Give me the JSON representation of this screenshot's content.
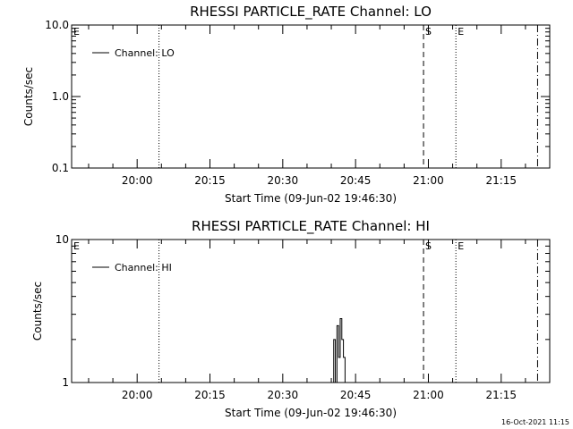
{
  "colors": {
    "background": "#ffffff",
    "foreground": "#000000"
  },
  "chart_data": [
    {
      "type": "line",
      "title": "RHESSI PARTICLE_RATE Channel: LO",
      "xlabel": "Start Time (09-Jun-02 19:46:30)",
      "ylabel": "Counts/sec",
      "y_scale": "log",
      "xlim_minutes": [
        "19:46:30",
        "21:25:00"
      ],
      "ylim": [
        0.1,
        10.0
      ],
      "x_ticks": [
        "20:00",
        "20:15",
        "20:30",
        "20:45",
        "21:00",
        "21:15"
      ],
      "y_ticks": [
        "0.1",
        "1.0",
        "10.0"
      ],
      "legend": {
        "placement": "top-left",
        "entries": [
          "Channel: LO"
        ]
      },
      "grid": false,
      "series": [
        {
          "name": "Channel: LO",
          "points": []
        }
      ],
      "markers": [
        {
          "label": "E",
          "time": "19:46:30",
          "style": "solid"
        },
        {
          "label": "",
          "time": "20:04:30",
          "style": "dotted"
        },
        {
          "label": "S",
          "time": "20:59:00",
          "style": "dashed"
        },
        {
          "label": "E",
          "time": "21:05:40",
          "style": "dotted"
        },
        {
          "label": "",
          "time": "21:22:30",
          "style": "dashdot"
        }
      ]
    },
    {
      "type": "line",
      "title": "RHESSI PARTICLE_RATE Channel: HI",
      "xlabel": "Start Time (09-Jun-02 19:46:30)",
      "ylabel": "Counts/sec",
      "y_scale": "log",
      "xlim_minutes": [
        "19:46:30",
        "21:25:00"
      ],
      "ylim": [
        1,
        10
      ],
      "x_ticks": [
        "20:00",
        "20:15",
        "20:30",
        "20:45",
        "21:00",
        "21:15"
      ],
      "y_ticks": [
        "1",
        "10"
      ],
      "legend": {
        "placement": "top-left",
        "entries": [
          "Channel: HI"
        ]
      },
      "grid": false,
      "series": [
        {
          "name": "Channel: HI",
          "points": [
            [
              "20:40:30",
              1.0
            ],
            [
              "20:40:30",
              2.0
            ],
            [
              "20:40:50",
              2.0
            ],
            [
              "20:40:50",
              1.0
            ],
            [
              "20:41:10",
              1.0
            ],
            [
              "20:41:10",
              2.5
            ],
            [
              "20:41:30",
              2.5
            ],
            [
              "20:41:30",
              1.5
            ],
            [
              "20:41:50",
              1.5
            ],
            [
              "20:41:50",
              2.8
            ],
            [
              "20:42:10",
              2.8
            ],
            [
              "20:42:10",
              2.0
            ],
            [
              "20:42:30",
              2.0
            ],
            [
              "20:42:30",
              1.5
            ],
            [
              "20:42:50",
              1.5
            ],
            [
              "20:42:50",
              1.0
            ]
          ]
        }
      ],
      "markers": [
        {
          "label": "E",
          "time": "19:46:30",
          "style": "solid"
        },
        {
          "label": "",
          "time": "20:04:30",
          "style": "dotted"
        },
        {
          "label": "S",
          "time": "20:59:00",
          "style": "dashed"
        },
        {
          "label": "E",
          "time": "21:05:40",
          "style": "dotted"
        },
        {
          "label": "",
          "time": "21:22:30",
          "style": "dashdot"
        }
      ]
    }
  ],
  "footer": {
    "timestamp": "16-Oct-2021 11:15"
  }
}
